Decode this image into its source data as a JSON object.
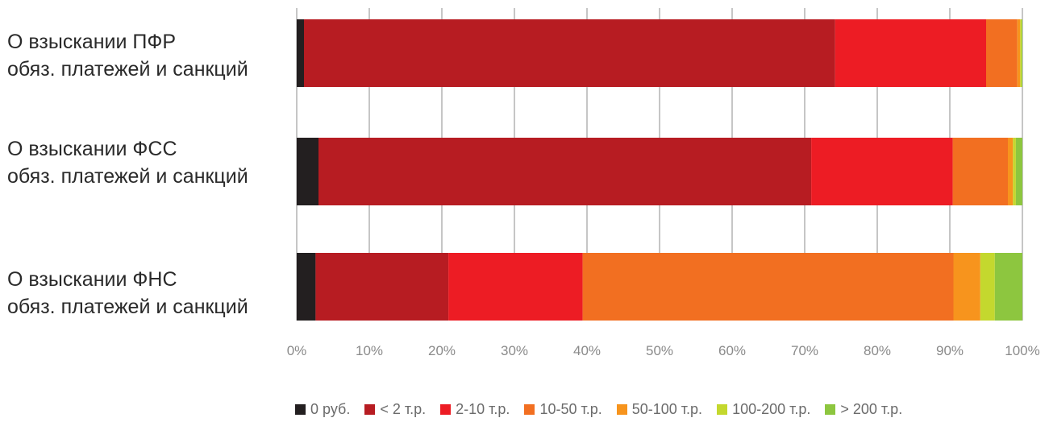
{
  "chart_data": {
    "type": "bar",
    "orientation": "horizontal",
    "stacked": true,
    "categories": [
      [
        "О взыскании ПФР",
        "обяз. платежей и санкций"
      ],
      [
        "О взыскании ФСС",
        "обяз. платежей и санкций"
      ],
      [
        "О взыскании ФНС",
        "обяз. платежей и санкций"
      ]
    ],
    "xlim": [
      0,
      100
    ],
    "x_ticks": [
      "0%",
      "10%",
      "20%",
      "30%",
      "40%",
      "50%",
      "60%",
      "70%",
      "80%",
      "90%",
      "100%"
    ],
    "grid": "vertical",
    "legend_position": "bottom",
    "series": [
      {
        "name": "0 руб.",
        "color": "#231f20",
        "values": [
          1.0,
          3.0,
          2.6
        ]
      },
      {
        "name": "< 2 т.р.",
        "color": "#b71c22",
        "values": [
          73.2,
          67.9,
          18.3
        ]
      },
      {
        "name": "2-10 т.р.",
        "color": "#ed1c24",
        "values": [
          20.8,
          19.5,
          18.5
        ]
      },
      {
        "name": "10-50 т.р.",
        "color": "#f26f21",
        "values": [
          4.3,
          7.6,
          51.1
        ]
      },
      {
        "name": "50-100 т.р.",
        "color": "#f7941d",
        "values": [
          0.4,
          0.7,
          3.7
        ]
      },
      {
        "name": "100-200 т.р.",
        "color": "#c4d82e",
        "values": [
          0.2,
          0.4,
          2.0
        ]
      },
      {
        "name": "> 200 т.р.",
        "color": "#8dc63f",
        "values": [
          0.1,
          0.9,
          3.8
        ]
      }
    ]
  }
}
